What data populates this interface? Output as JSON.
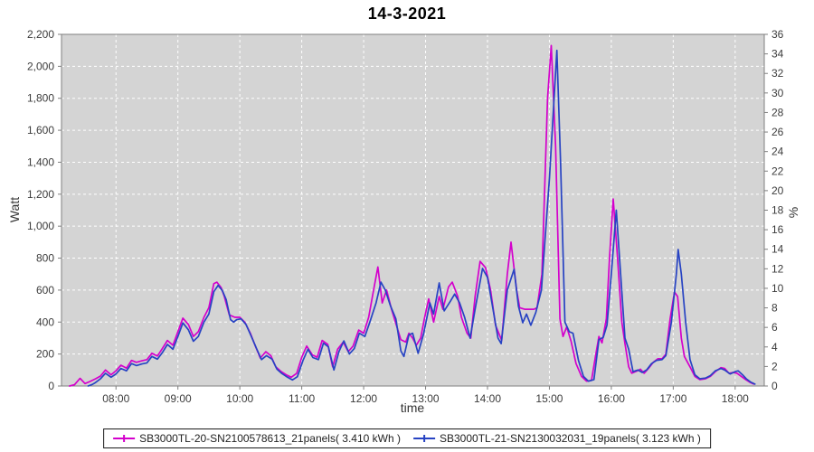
{
  "title": "14-3-2021",
  "axes": {
    "left_label": "Watt",
    "right_label": "%",
    "bottom_label": "time"
  },
  "legend": {
    "entries": [
      {
        "label": "SB3000TL-20-SN2100578613_21panels( 3.410 kWh )",
        "color": "#d400cc"
      },
      {
        "label": "SB3000TL-21-SN2130032031_19panels( 3.123 kWh )",
        "color": "#2743c3"
      }
    ]
  },
  "colors": {
    "plot_bg": "#d4d4d4",
    "grid": "#ffffff",
    "border": "#7f7f7f",
    "tick": "#7f7f7f",
    "tick_text": "#3c3c3c"
  },
  "chart_data": {
    "type": "line",
    "title": "14-3-2021",
    "xlabel": "time",
    "ylabel": "Watt",
    "ylabel_right": "%",
    "grid": "white dashed on gray panel",
    "legend_position": "bottom",
    "x_axis": {
      "min": 7.12,
      "max": 18.47,
      "tick_hours": [
        8,
        9,
        10,
        11,
        12,
        13,
        14,
        15,
        16,
        17,
        18
      ],
      "tick_labels": [
        "08:00",
        "09:00",
        "10:00",
        "11:00",
        "12:00",
        "13:00",
        "14:00",
        "15:00",
        "16:00",
        "17:00",
        "18:00"
      ]
    },
    "y_axis_left": {
      "min": 0,
      "max": 2200,
      "step": 200
    },
    "y_axis_right": {
      "min": 0,
      "max": 36,
      "step": 2
    },
    "series": [
      {
        "name": "SB3000TL-20-SN2100578613_21panels",
        "energy_kwh": "3.410",
        "color": "#d400cc",
        "points": [
          [
            7.25,
            0
          ],
          [
            7.33,
            8
          ],
          [
            7.42,
            48
          ],
          [
            7.5,
            15
          ],
          [
            7.58,
            28
          ],
          [
            7.67,
            45
          ],
          [
            7.75,
            62
          ],
          [
            7.83,
            100
          ],
          [
            7.92,
            70
          ],
          [
            8,
            95
          ],
          [
            8.08,
            130
          ],
          [
            8.17,
            112
          ],
          [
            8.25,
            160
          ],
          [
            8.33,
            148
          ],
          [
            8.42,
            158
          ],
          [
            8.5,
            165
          ],
          [
            8.58,
            205
          ],
          [
            8.67,
            188
          ],
          [
            8.75,
            235
          ],
          [
            8.83,
            285
          ],
          [
            8.92,
            255
          ],
          [
            9,
            340
          ],
          [
            9.08,
            425
          ],
          [
            9.17,
            385
          ],
          [
            9.25,
            310
          ],
          [
            9.33,
            340
          ],
          [
            9.42,
            430
          ],
          [
            9.5,
            490
          ],
          [
            9.58,
            640
          ],
          [
            9.63,
            650
          ],
          [
            9.7,
            615
          ],
          [
            9.75,
            560
          ],
          [
            9.83,
            445
          ],
          [
            9.92,
            430
          ],
          [
            10,
            430
          ],
          [
            10.08,
            400
          ],
          [
            10.17,
            330
          ],
          [
            10.25,
            250
          ],
          [
            10.33,
            175
          ],
          [
            10.42,
            215
          ],
          [
            10.5,
            190
          ],
          [
            10.58,
            120
          ],
          [
            10.67,
            90
          ],
          [
            10.75,
            70
          ],
          [
            10.83,
            55
          ],
          [
            10.92,
            80
          ],
          [
            11,
            180
          ],
          [
            11.08,
            250
          ],
          [
            11.17,
            195
          ],
          [
            11.25,
            180
          ],
          [
            11.33,
            285
          ],
          [
            11.42,
            260
          ],
          [
            11.5,
            120
          ],
          [
            11.58,
            230
          ],
          [
            11.67,
            275
          ],
          [
            11.75,
            215
          ],
          [
            11.83,
            250
          ],
          [
            11.92,
            350
          ],
          [
            12,
            330
          ],
          [
            12.08,
            430
          ],
          [
            12.17,
            620
          ],
          [
            12.23,
            745
          ],
          [
            12.3,
            520
          ],
          [
            12.37,
            600
          ],
          [
            12.45,
            480
          ],
          [
            12.52,
            390
          ],
          [
            12.6,
            290
          ],
          [
            12.68,
            275
          ],
          [
            12.73,
            330
          ],
          [
            12.79,
            300
          ],
          [
            12.85,
            255
          ],
          [
            12.92,
            300
          ],
          [
            12.98,
            420
          ],
          [
            13.05,
            545
          ],
          [
            13.13,
            400
          ],
          [
            13.22,
            560
          ],
          [
            13.28,
            480
          ],
          [
            13.37,
            620
          ],
          [
            13.43,
            650
          ],
          [
            13.52,
            560
          ],
          [
            13.58,
            430
          ],
          [
            13.67,
            330
          ],
          [
            13.73,
            300
          ],
          [
            13.8,
            560
          ],
          [
            13.88,
            780
          ],
          [
            13.97,
            740
          ],
          [
            14.05,
            600
          ],
          [
            14.13,
            380
          ],
          [
            14.23,
            285
          ],
          [
            14.32,
            700
          ],
          [
            14.38,
            900
          ],
          [
            14.47,
            600
          ],
          [
            14.52,
            490
          ],
          [
            14.6,
            480
          ],
          [
            14.68,
            480
          ],
          [
            14.75,
            480
          ],
          [
            14.8,
            490
          ],
          [
            14.88,
            700
          ],
          [
            14.97,
            1800
          ],
          [
            15.03,
            2130
          ],
          [
            15.1,
            1500
          ],
          [
            15.17,
            420
          ],
          [
            15.22,
            310
          ],
          [
            15.28,
            370
          ],
          [
            15.35,
            280
          ],
          [
            15.43,
            140
          ],
          [
            15.52,
            60
          ],
          [
            15.6,
            30
          ],
          [
            15.68,
            35
          ],
          [
            15.75,
            200
          ],
          [
            15.8,
            310
          ],
          [
            15.85,
            270
          ],
          [
            15.92,
            420
          ],
          [
            15.97,
            800
          ],
          [
            16.03,
            1170
          ],
          [
            16.1,
            800
          ],
          [
            16.17,
            400
          ],
          [
            16.22,
            265
          ],
          [
            16.28,
            120
          ],
          [
            16.33,
            80
          ],
          [
            16.42,
            95
          ],
          [
            16.47,
            105
          ],
          [
            16.53,
            80
          ],
          [
            16.6,
            110
          ],
          [
            16.68,
            150
          ],
          [
            16.75,
            170
          ],
          [
            16.82,
            170
          ],
          [
            16.88,
            200
          ],
          [
            16.95,
            420
          ],
          [
            17.02,
            588
          ],
          [
            17.07,
            560
          ],
          [
            17.13,
            300
          ],
          [
            17.18,
            185
          ],
          [
            17.27,
            120
          ],
          [
            17.35,
            60
          ],
          [
            17.43,
            40
          ],
          [
            17.52,
            45
          ],
          [
            17.6,
            60
          ],
          [
            17.68,
            90
          ],
          [
            17.77,
            115
          ],
          [
            17.83,
            110
          ],
          [
            17.9,
            80
          ],
          [
            17.97,
            85
          ],
          [
            18.03,
            80
          ],
          [
            18.1,
            60
          ],
          [
            18.17,
            40
          ],
          [
            18.23,
            25
          ],
          [
            18.3,
            12
          ]
        ]
      },
      {
        "name": "SB3000TL-21-SN2130032031_19panels",
        "energy_kwh": "3.123",
        "color": "#2743c3",
        "points": [
          [
            7.55,
            0
          ],
          [
            7.62,
            10
          ],
          [
            7.67,
            22
          ],
          [
            7.75,
            45
          ],
          [
            7.83,
            80
          ],
          [
            7.92,
            55
          ],
          [
            8,
            75
          ],
          [
            8.08,
            110
          ],
          [
            8.17,
            95
          ],
          [
            8.25,
            140
          ],
          [
            8.33,
            128
          ],
          [
            8.42,
            138
          ],
          [
            8.5,
            145
          ],
          [
            8.58,
            185
          ],
          [
            8.67,
            168
          ],
          [
            8.75,
            210
          ],
          [
            8.83,
            260
          ],
          [
            8.92,
            230
          ],
          [
            9,
            310
          ],
          [
            9.08,
            395
          ],
          [
            9.17,
            352
          ],
          [
            9.25,
            280
          ],
          [
            9.33,
            310
          ],
          [
            9.42,
            400
          ],
          [
            9.5,
            450
          ],
          [
            9.58,
            590
          ],
          [
            9.65,
            630
          ],
          [
            9.72,
            595
          ],
          [
            9.78,
            540
          ],
          [
            9.85,
            415
          ],
          [
            9.9,
            400
          ],
          [
            9.95,
            415
          ],
          [
            10.02,
            420
          ],
          [
            10.1,
            385
          ],
          [
            10.18,
            315
          ],
          [
            10.27,
            235
          ],
          [
            10.35,
            165
          ],
          [
            10.43,
            190
          ],
          [
            10.52,
            168
          ],
          [
            10.6,
            105
          ],
          [
            10.68,
            78
          ],
          [
            10.77,
            55
          ],
          [
            10.85,
            38
          ],
          [
            10.93,
            58
          ],
          [
            11.02,
            160
          ],
          [
            11.1,
            230
          ],
          [
            11.18,
            178
          ],
          [
            11.27,
            165
          ],
          [
            11.35,
            268
          ],
          [
            11.43,
            245
          ],
          [
            11.52,
            100
          ],
          [
            11.6,
            215
          ],
          [
            11.68,
            282
          ],
          [
            11.77,
            200
          ],
          [
            11.85,
            235
          ],
          [
            11.93,
            330
          ],
          [
            12.02,
            310
          ],
          [
            12.1,
            400
          ],
          [
            12.2,
            520
          ],
          [
            12.28,
            650
          ],
          [
            12.35,
            600
          ],
          [
            12.43,
            505
          ],
          [
            12.52,
            420
          ],
          [
            12.6,
            220
          ],
          [
            12.65,
            185
          ],
          [
            12.73,
            320
          ],
          [
            12.79,
            330
          ],
          [
            12.88,
            205
          ],
          [
            12.97,
            330
          ],
          [
            13.07,
            520
          ],
          [
            13.13,
            450
          ],
          [
            13.22,
            645
          ],
          [
            13.3,
            470
          ],
          [
            13.4,
            530
          ],
          [
            13.47,
            575
          ],
          [
            13.55,
            520
          ],
          [
            13.63,
            430
          ],
          [
            13.72,
            300
          ],
          [
            13.8,
            480
          ],
          [
            13.92,
            735
          ],
          [
            14,
            680
          ],
          [
            14.08,
            500
          ],
          [
            14.17,
            300
          ],
          [
            14.22,
            265
          ],
          [
            14.32,
            600
          ],
          [
            14.43,
            730
          ],
          [
            14.5,
            500
          ],
          [
            14.57,
            396
          ],
          [
            14.63,
            450
          ],
          [
            14.7,
            380
          ],
          [
            14.78,
            460
          ],
          [
            14.87,
            600
          ],
          [
            15,
            1300
          ],
          [
            15.12,
            2100
          ],
          [
            15.18,
            1400
          ],
          [
            15.25,
            400
          ],
          [
            15.32,
            340
          ],
          [
            15.38,
            330
          ],
          [
            15.47,
            160
          ],
          [
            15.55,
            60
          ],
          [
            15.63,
            30
          ],
          [
            15.72,
            40
          ],
          [
            15.8,
            290
          ],
          [
            15.87,
            305
          ],
          [
            15.93,
            380
          ],
          [
            16,
            700
          ],
          [
            16.08,
            1100
          ],
          [
            16.15,
            700
          ],
          [
            16.22,
            300
          ],
          [
            16.28,
            230
          ],
          [
            16.35,
            90
          ],
          [
            16.43,
            100
          ],
          [
            16.5,
            85
          ],
          [
            16.57,
            100
          ],
          [
            16.65,
            140
          ],
          [
            16.73,
            160
          ],
          [
            16.82,
            165
          ],
          [
            16.88,
            190
          ],
          [
            16.97,
            400
          ],
          [
            17.05,
            700
          ],
          [
            17.08,
            854
          ],
          [
            17.13,
            700
          ],
          [
            17.2,
            400
          ],
          [
            17.27,
            165
          ],
          [
            17.35,
            70
          ],
          [
            17.43,
            45
          ],
          [
            17.52,
            50
          ],
          [
            17.6,
            65
          ],
          [
            17.68,
            95
          ],
          [
            17.77,
            110
          ],
          [
            17.83,
            100
          ],
          [
            17.92,
            75
          ],
          [
            18,
            90
          ],
          [
            18.05,
            95
          ],
          [
            18.12,
            70
          ],
          [
            18.18,
            45
          ],
          [
            18.25,
            25
          ],
          [
            18.32,
            12
          ]
        ]
      }
    ]
  }
}
